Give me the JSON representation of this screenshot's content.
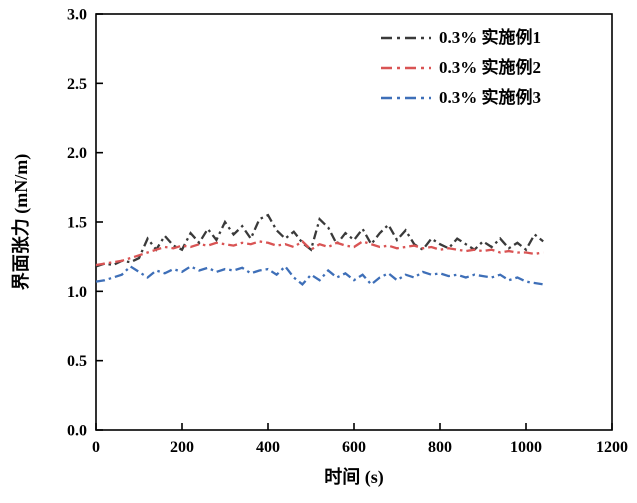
{
  "chart_data": {
    "type": "line",
    "title": "",
    "xlabel": "时间 (s)",
    "ylabel": "界面张力 (mN/m)",
    "xlim": [
      0,
      1200
    ],
    "ylim": [
      0.0,
      3.0
    ],
    "x_ticks": [
      0,
      200,
      400,
      600,
      800,
      1000,
      1200
    ],
    "y_ticks": [
      0.0,
      0.5,
      1.0,
      1.5,
      2.0,
      2.5,
      3.0
    ],
    "grid": false,
    "legend_position": "top-right",
    "line_style": "dash-dot",
    "axis_color": "#000000",
    "x": [
      0,
      20,
      40,
      60,
      80,
      100,
      120,
      140,
      160,
      180,
      200,
      220,
      240,
      260,
      280,
      300,
      320,
      340,
      360,
      380,
      400,
      420,
      440,
      460,
      480,
      500,
      520,
      540,
      560,
      580,
      600,
      620,
      640,
      660,
      680,
      700,
      720,
      740,
      760,
      780,
      800,
      820,
      840,
      860,
      880,
      900,
      920,
      940,
      960,
      980,
      1000,
      1020,
      1040
    ],
    "series": [
      {
        "name": "0.3% 实施例1",
        "color": "#3a3a3a",
        "values": [
          1.18,
          1.2,
          1.19,
          1.22,
          1.21,
          1.24,
          1.38,
          1.3,
          1.4,
          1.33,
          1.3,
          1.42,
          1.35,
          1.45,
          1.37,
          1.5,
          1.41,
          1.47,
          1.38,
          1.52,
          1.55,
          1.44,
          1.38,
          1.43,
          1.35,
          1.3,
          1.52,
          1.46,
          1.34,
          1.42,
          1.37,
          1.45,
          1.34,
          1.42,
          1.48,
          1.37,
          1.44,
          1.34,
          1.3,
          1.38,
          1.34,
          1.31,
          1.38,
          1.34,
          1.3,
          1.36,
          1.32,
          1.38,
          1.31,
          1.35,
          1.3,
          1.41,
          1.36
        ]
      },
      {
        "name": "0.3% 实施例2",
        "color": "#d95454",
        "values": [
          1.19,
          1.2,
          1.21,
          1.22,
          1.24,
          1.26,
          1.28,
          1.3,
          1.32,
          1.31,
          1.33,
          1.32,
          1.34,
          1.33,
          1.35,
          1.34,
          1.33,
          1.35,
          1.34,
          1.36,
          1.35,
          1.33,
          1.34,
          1.32,
          1.36,
          1.3,
          1.34,
          1.32,
          1.35,
          1.33,
          1.32,
          1.36,
          1.34,
          1.32,
          1.33,
          1.31,
          1.32,
          1.33,
          1.31,
          1.32,
          1.3,
          1.31,
          1.3,
          1.29,
          1.3,
          1.29,
          1.3,
          1.28,
          1.29,
          1.28,
          1.28,
          1.27,
          1.28
        ]
      },
      {
        "name": "0.3% 实施例3",
        "color": "#3e6fb8",
        "values": [
          1.07,
          1.08,
          1.1,
          1.12,
          1.18,
          1.14,
          1.1,
          1.15,
          1.13,
          1.16,
          1.14,
          1.18,
          1.15,
          1.17,
          1.14,
          1.16,
          1.15,
          1.17,
          1.13,
          1.15,
          1.16,
          1.12,
          1.18,
          1.1,
          1.05,
          1.12,
          1.08,
          1.15,
          1.1,
          1.13,
          1.08,
          1.12,
          1.05,
          1.1,
          1.13,
          1.08,
          1.12,
          1.1,
          1.14,
          1.12,
          1.13,
          1.11,
          1.12,
          1.1,
          1.12,
          1.11,
          1.1,
          1.12,
          1.08,
          1.1,
          1.07,
          1.06,
          1.05
        ]
      }
    ]
  }
}
